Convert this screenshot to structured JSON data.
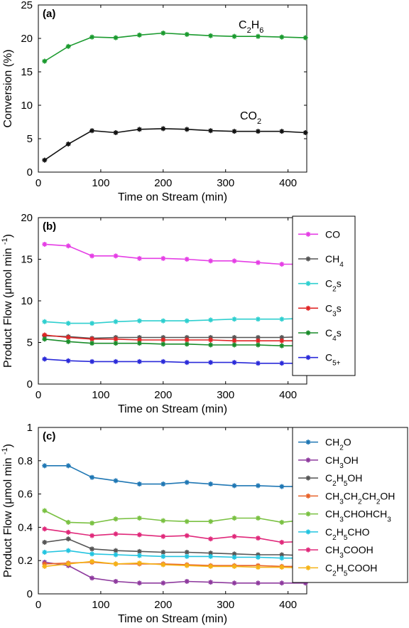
{
  "chart_data": [
    {
      "type": "line",
      "panel_label": "(a)",
      "xlabel": "Time on Stream (min)",
      "ylabel": "Conversion (%)",
      "xlim": [
        0,
        430
      ],
      "ylim": [
        0,
        25
      ],
      "xticks": [
        0,
        100,
        200,
        300,
        400
      ],
      "yticks": [
        0,
        5,
        10,
        15,
        20,
        25
      ],
      "grid": false,
      "legend": "inline-labels",
      "x": [
        10,
        48,
        86,
        124,
        162,
        200,
        238,
        276,
        314,
        352,
        390,
        428
      ],
      "series": [
        {
          "name": "C2H6",
          "color": "#1a9a2e",
          "values": [
            16.6,
            18.8,
            20.2,
            20.1,
            20.5,
            20.8,
            20.6,
            20.4,
            20.3,
            20.3,
            20.2,
            20.1
          ]
        },
        {
          "name": "CO2",
          "color": "#111111",
          "values": [
            1.8,
            4.2,
            6.2,
            5.9,
            6.4,
            6.5,
            6.4,
            6.2,
            6.1,
            6.1,
            6.1,
            5.9
          ]
        }
      ],
      "label_parts": [
        {
          "main": "C",
          "sub": "2",
          "main2": "H",
          "sub2": "6"
        },
        {
          "main": "CO",
          "sub": "2",
          "main2": "",
          "sub2": ""
        }
      ]
    },
    {
      "type": "line",
      "panel_label": "(b)",
      "xlabel": "Time on Stream (min)",
      "ylabel": "Product Flow (μmol min⁻¹)",
      "xlim": [
        0,
        430
      ],
      "ylim": [
        0,
        20
      ],
      "xticks": [
        0,
        100,
        200,
        300,
        400
      ],
      "yticks": [
        0,
        5,
        10,
        15,
        20
      ],
      "grid": false,
      "legend": "outside-right",
      "x": [
        10,
        48,
        86,
        124,
        162,
        200,
        238,
        276,
        314,
        352,
        390,
        428
      ],
      "series": [
        {
          "name": "CO",
          "color": "#e53ee5",
          "values": [
            16.8,
            16.6,
            15.4,
            15.4,
            15.1,
            15.1,
            15.0,
            14.8,
            14.8,
            14.6,
            14.4,
            14.4
          ]
        },
        {
          "name": "CH4",
          "color": "#555555",
          "values": [
            5.8,
            5.7,
            5.5,
            5.6,
            5.6,
            5.6,
            5.6,
            5.6,
            5.6,
            5.6,
            5.6,
            5.7
          ]
        },
        {
          "name": "C2s",
          "color": "#2ecfcf",
          "values": [
            7.5,
            7.3,
            7.3,
            7.5,
            7.6,
            7.6,
            7.6,
            7.7,
            7.8,
            7.8,
            7.8,
            7.9
          ]
        },
        {
          "name": "C3s",
          "color": "#e02424",
          "values": [
            5.9,
            5.6,
            5.4,
            5.4,
            5.3,
            5.3,
            5.3,
            5.3,
            5.2,
            5.2,
            5.2,
            5.2
          ]
        },
        {
          "name": "C4s",
          "color": "#1a8c2a",
          "values": [
            5.4,
            5.1,
            4.9,
            4.9,
            4.9,
            4.8,
            4.8,
            4.7,
            4.7,
            4.7,
            4.6,
            4.6
          ]
        },
        {
          "name": "C5+",
          "color": "#2a2ad9",
          "values": [
            3.0,
            2.8,
            2.7,
            2.7,
            2.7,
            2.7,
            2.6,
            2.6,
            2.6,
            2.5,
            2.5,
            2.5
          ]
        }
      ],
      "label_parts": [
        {
          "main": "CO",
          "sub": "",
          "main2": "",
          "sub2": ""
        },
        {
          "main": "CH",
          "sub": "4",
          "main2": "",
          "sub2": ""
        },
        {
          "main": "C",
          "sub": "2",
          "main2": "s",
          "sub2": ""
        },
        {
          "main": "C",
          "sub": "3",
          "main2": "s",
          "sub2": ""
        },
        {
          "main": "C",
          "sub": "4",
          "main2": "s",
          "sub2": ""
        },
        {
          "main": "C",
          "sub": "5+",
          "main2": "",
          "sub2": ""
        }
      ]
    },
    {
      "type": "line",
      "panel_label": "(c)",
      "xlabel": "Time on Stream (min)",
      "ylabel": "Product Flow (μmol min⁻¹)",
      "xlim": [
        0,
        430
      ],
      "ylim": [
        0,
        1
      ],
      "xticks": [
        0,
        100,
        200,
        300,
        400
      ],
      "yticks": [
        0,
        0.2,
        0.4,
        0.6,
        0.8,
        1
      ],
      "ytick_labels": [
        "0",
        "0.2",
        "0.4",
        "0.6",
        "0.8",
        "1"
      ],
      "grid": false,
      "legend": "outside-right",
      "x": [
        10,
        48,
        86,
        124,
        162,
        200,
        238,
        276,
        314,
        352,
        390,
        428
      ],
      "series": [
        {
          "name": "CH2O",
          "color": "#1f77b4",
          "values": [
            0.77,
            0.77,
            0.7,
            0.68,
            0.66,
            0.66,
            0.67,
            0.66,
            0.65,
            0.65,
            0.645,
            0.645
          ]
        },
        {
          "name": "CH3OH",
          "color": "#8e3a9e",
          "values": [
            0.19,
            0.17,
            0.095,
            0.075,
            0.065,
            0.065,
            0.075,
            0.07,
            0.065,
            0.065,
            0.065,
            0.065
          ]
        },
        {
          "name": "C2H5OH",
          "color": "#555555",
          "values": [
            0.31,
            0.33,
            0.27,
            0.26,
            0.255,
            0.25,
            0.25,
            0.245,
            0.24,
            0.235,
            0.235,
            0.23
          ]
        },
        {
          "name": "CH3CH2CH2OH",
          "color": "#e8632a",
          "values": [
            0.18,
            0.185,
            0.19,
            0.18,
            0.18,
            0.18,
            0.175,
            0.17,
            0.17,
            0.17,
            0.165,
            0.165
          ]
        },
        {
          "name": "CH3CHOHCH3",
          "color": "#7ac142",
          "values": [
            0.5,
            0.43,
            0.425,
            0.45,
            0.455,
            0.44,
            0.435,
            0.435,
            0.455,
            0.455,
            0.43,
            0.445
          ]
        },
        {
          "name": "C2H5CHO",
          "color": "#22c4e0",
          "values": [
            0.25,
            0.26,
            0.24,
            0.235,
            0.23,
            0.225,
            0.225,
            0.225,
            0.22,
            0.22,
            0.215,
            0.215
          ]
        },
        {
          "name": "CH3COOH",
          "color": "#e0287a",
          "values": [
            0.39,
            0.37,
            0.35,
            0.36,
            0.355,
            0.345,
            0.35,
            0.33,
            0.345,
            0.335,
            0.31,
            0.315
          ]
        },
        {
          "name": "C2H5COOH",
          "color": "#f5b316",
          "values": [
            0.165,
            0.18,
            0.195,
            0.18,
            0.185,
            0.175,
            0.17,
            0.165,
            0.165,
            0.16,
            0.16,
            0.155
          ]
        }
      ],
      "label_parts": [
        {
          "main": "CH",
          "sub": "2",
          "main2": "O",
          "sub2": ""
        },
        {
          "main": "CH",
          "sub": "3",
          "main2": "OH",
          "sub2": ""
        },
        {
          "main": "C",
          "sub": "2",
          "main2": "H",
          "sub2": "5",
          "main3": "OH"
        },
        {
          "main": "CH",
          "sub": "3",
          "main2": "CH",
          "sub2": "2",
          "main3": "CH",
          "sub3": "2",
          "main4": "OH"
        },
        {
          "main": "CH",
          "sub": "3",
          "main2": "CHOHCH",
          "sub2": "3"
        },
        {
          "main": "C",
          "sub": "2",
          "main2": "H",
          "sub2": "5",
          "main3": "CHO"
        },
        {
          "main": "CH",
          "sub": "3",
          "main2": "COOH",
          "sub2": ""
        },
        {
          "main": "C",
          "sub": "2",
          "main2": "H",
          "sub2": "5",
          "main3": "COOH"
        }
      ]
    }
  ]
}
